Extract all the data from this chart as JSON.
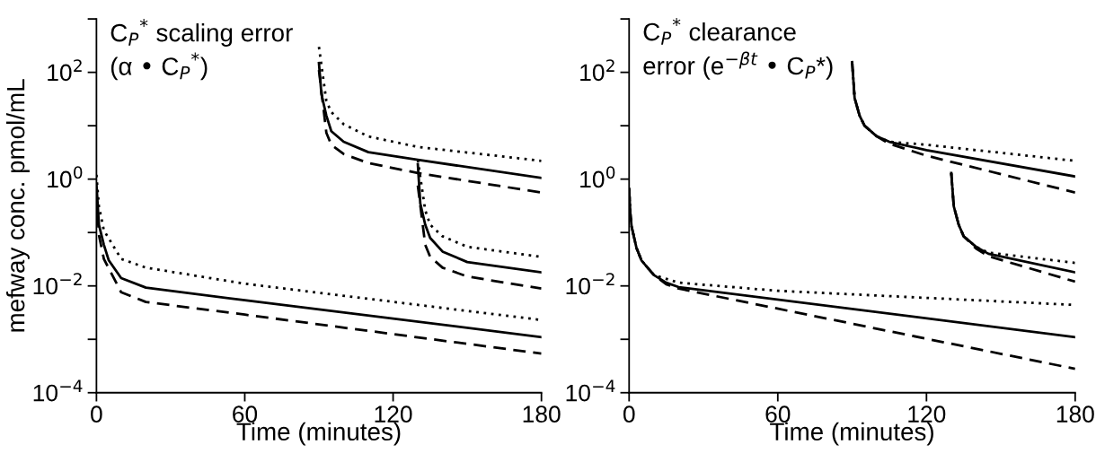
{
  "chart_data": [
    {
      "type": "line",
      "title": "C$_{P}$$^{*}$ scaling error\n(α • C$_{P}$$^{*}$)",
      "xlabel": "Time (minutes)",
      "ylabel": "mefway conc. pmol/mL",
      "log": "y",
      "xlim": [
        0,
        180
      ],
      "xticks": [
        0,
        60,
        120,
        180
      ],
      "ylim": [
        0.0001,
        1000
      ],
      "yticks": [
        {
          "value": 0.0001,
          "label": "10$^{−4}$"
        },
        {
          "value": 0.001,
          "label": null
        },
        {
          "value": 0.01,
          "label": "10$^{−2}$"
        },
        {
          "value": 0.1,
          "label": null
        },
        {
          "value": 1,
          "label": "10$^{0}$"
        },
        {
          "value": 10,
          "label": null
        },
        {
          "value": 100,
          "label": "10$^{2}$"
        },
        {
          "value": 1000,
          "label": null
        }
      ],
      "series": [
        {
          "color": "#000000",
          "line_style": "solid",
          "x": [
            0,
            1,
            3,
            5,
            10,
            20,
            60,
            180
          ],
          "values": [
            0.8,
            0.14,
            0.059,
            0.03,
            0.014,
            0.0093,
            0.0054,
            0.0011
          ]
        },
        {
          "color": "#000000",
          "line_style": "dotted",
          "x": [
            0,
            1,
            3,
            10,
            20,
            60,
            180
          ],
          "values": [
            1.2,
            0.31,
            0.11,
            0.032,
            0.022,
            0.011,
            0.0023
          ]
        },
        {
          "color": "#000000",
          "line_style": "dashed",
          "x": [
            0,
            1,
            3,
            10,
            20,
            60,
            180
          ],
          "values": [
            0.5,
            0.09,
            0.032,
            0.0076,
            0.005,
            0.0029,
            0.00054
          ]
        },
        {
          "color": "#000000",
          "line_style": "solid",
          "x": [
            90,
            91,
            93,
            95,
            100,
            110,
            130,
            180
          ],
          "values": [
            150,
            39,
            15.5,
            7.9,
            5.0,
            3.2,
            2.3,
            1.05
          ]
        },
        {
          "color": "#000000",
          "line_style": "dotted",
          "x": [
            90,
            93,
            95,
            100,
            110,
            130,
            180
          ],
          "values": [
            300,
            29,
            18,
            10.7,
            6.3,
            4.0,
            2.2
          ]
        },
        {
          "color": "#000000",
          "line_style": "dashed",
          "x": [
            90,
            93,
            95,
            100,
            110,
            130,
            180
          ],
          "values": [
            110,
            7.4,
            4.4,
            2.95,
            2.0,
            1.3,
            0.56
          ]
        },
        {
          "color": "#000000",
          "line_style": "solid",
          "x": [
            130,
            131,
            133,
            135,
            140,
            150,
            180
          ],
          "values": [
            1.9,
            0.35,
            0.14,
            0.079,
            0.044,
            0.028,
            0.018
          ]
        },
        {
          "color": "#000000",
          "line_style": "dotted",
          "x": [
            130,
            133,
            135,
            140,
            150,
            180
          ],
          "values": [
            2.3,
            0.26,
            0.14,
            0.085,
            0.054,
            0.035
          ]
        },
        {
          "color": "#000000",
          "line_style": "dashed",
          "x": [
            130,
            133,
            135,
            140,
            150,
            180
          ],
          "values": [
            0.76,
            0.059,
            0.035,
            0.022,
            0.015,
            0.0089
          ]
        }
      ]
    },
    {
      "type": "line",
      "title": "C$_{P}$$^{*}$ clearance\nerror (e$^{−βt}$ • C$_{P}$*)",
      "xlabel": "Time (minutes)",
      "log": "y",
      "xlim": [
        0,
        180
      ],
      "xticks": [
        0,
        60,
        120,
        180
      ],
      "ylim": [
        0.0001,
        1000
      ],
      "yticks": [
        {
          "value": 0.0001,
          "label": "10$^{−4}$"
        },
        {
          "value": 0.001,
          "label": null
        },
        {
          "value": 0.01,
          "label": "10$^{−2}$"
        },
        {
          "value": 0.1,
          "label": null
        },
        {
          "value": 1,
          "label": "10$^{0}$"
        },
        {
          "value": 10,
          "label": null
        },
        {
          "value": 100,
          "label": "10$^{2}$"
        },
        {
          "value": 1000,
          "label": null
        }
      ],
      "series": [
        {
          "color": "#000000",
          "line_style": "solid",
          "x": [
            0,
            0.5,
            1,
            3,
            5,
            10,
            15,
            20,
            180
          ],
          "values": [
            0.66,
            0.23,
            0.13,
            0.051,
            0.03,
            0.016,
            0.0115,
            0.0095,
            0.0011
          ]
        },
        {
          "color": "#000000",
          "line_style": "dotted",
          "x": [
            0,
            0.5,
            1,
            3,
            5,
            10,
            20,
            60,
            180
          ],
          "values": [
            0.66,
            0.23,
            0.13,
            0.051,
            0.03,
            0.016,
            0.0115,
            0.0081,
            0.0044
          ]
        },
        {
          "color": "#000000",
          "line_style": "dashed",
          "x": [
            0,
            0.5,
            1,
            3,
            5,
            10,
            15,
            20,
            180
          ],
          "values": [
            0.66,
            0.23,
            0.13,
            0.051,
            0.03,
            0.016,
            0.0107,
            0.0089,
            0.00028
          ]
        },
        {
          "color": "#000000",
          "line_style": "solid",
          "x": [
            90,
            91,
            93,
            95,
            100,
            105,
            120,
            180
          ],
          "values": [
            155,
            33,
            15.5,
            10,
            6.3,
            5.0,
            3.5,
            1.12
          ]
        },
        {
          "color": "#000000",
          "line_style": "dotted",
          "x": [
            90,
            91,
            93,
            95,
            100,
            105,
            120,
            180
          ],
          "values": [
            155,
            33,
            15.5,
            10,
            6.3,
            5.0,
            4.4,
            2.2
          ]
        },
        {
          "color": "#000000",
          "line_style": "dashed",
          "x": [
            90,
            91,
            93,
            95,
            100,
            105,
            120,
            180
          ],
          "values": [
            155,
            33,
            15.5,
            10,
            6.3,
            4.6,
            2.75,
            0.56
          ]
        },
        {
          "color": "#000000",
          "line_style": "solid",
          "x": [
            130,
            131,
            133,
            135,
            140,
            145,
            180
          ],
          "values": [
            1.3,
            0.31,
            0.14,
            0.085,
            0.054,
            0.04,
            0.018
          ]
        },
        {
          "color": "#000000",
          "line_style": "dotted",
          "x": [
            130,
            131,
            133,
            135,
            140,
            145,
            180
          ],
          "values": [
            1.3,
            0.31,
            0.14,
            0.085,
            0.054,
            0.042,
            0.027
          ]
        },
        {
          "color": "#000000",
          "line_style": "dashed",
          "x": [
            130,
            131,
            133,
            135,
            140,
            145,
            180
          ],
          "values": [
            1.3,
            0.31,
            0.14,
            0.085,
            0.05,
            0.036,
            0.012
          ]
        }
      ]
    }
  ]
}
